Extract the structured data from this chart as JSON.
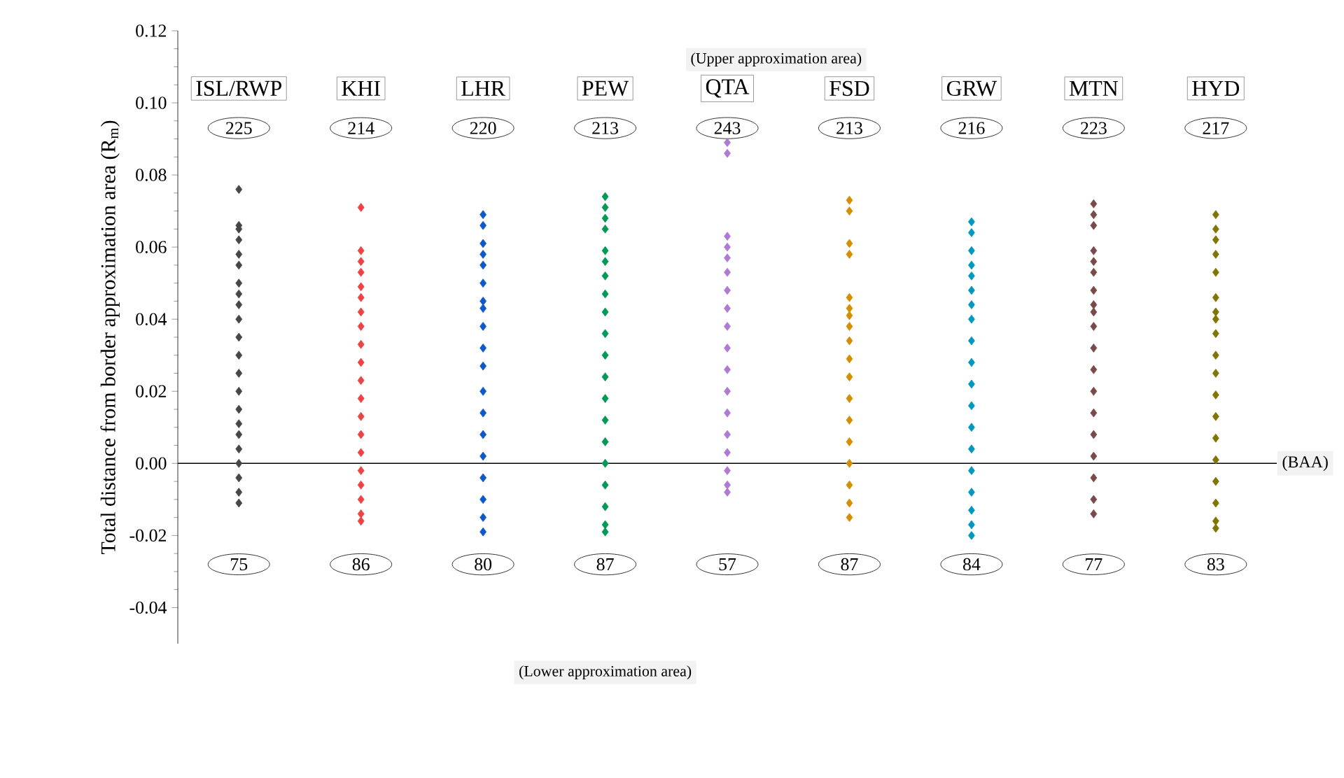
{
  "chart_data": {
    "type": "scatter",
    "ylabel": "Total distance from border approximation area (R$_{m}$)",
    "categories": [
      "ISL/RWP",
      "KHI",
      "LHR",
      "PEW",
      "QTA",
      "FSD",
      "GRW",
      "MTN",
      "HYD"
    ],
    "series": [
      {
        "color": "#474747",
        "x": [
          "ISL/RWP",
          "ISL/RWP",
          "ISL/RWP",
          "ISL/RWP",
          "ISL/RWP",
          "ISL/RWP",
          "ISL/RWP",
          "ISL/RWP",
          "ISL/RWP",
          "ISL/RWP",
          "ISL/RWP",
          "ISL/RWP",
          "ISL/RWP",
          "ISL/RWP",
          "ISL/RWP",
          "ISL/RWP",
          "ISL/RWP",
          "ISL/RWP",
          "ISL/RWP",
          "ISL/RWP",
          "ISL/RWP",
          "ISL/RWP"
        ],
        "values": [
          0.076,
          0.066,
          0.065,
          0.062,
          0.058,
          0.055,
          0.05,
          0.047,
          0.044,
          0.04,
          0.035,
          0.03,
          0.025,
          0.02,
          0.015,
          0.011,
          0.008,
          0.004,
          0,
          -0.004,
          -0.008,
          -0.011
        ]
      },
      {
        "color": "#f04242",
        "x": [
          "KHI",
          "KHI",
          "KHI",
          "KHI",
          "KHI",
          "KHI",
          "KHI",
          "KHI",
          "KHI",
          "KHI",
          "KHI",
          "KHI",
          "KHI",
          "KHI",
          "KHI",
          "KHI",
          "KHI",
          "KHI",
          "KHI",
          "KHI"
        ],
        "values": [
          0.071,
          0.059,
          0.056,
          0.053,
          0.049,
          0.046,
          0.042,
          0.038,
          0.033,
          0.028,
          0.023,
          0.018,
          0.013,
          0.008,
          0.003,
          -0.002,
          -0.006,
          -0.01,
          -0.014,
          -0.016
        ]
      },
      {
        "color": "#0d59cc",
        "x": [
          "LHR",
          "LHR",
          "LHR",
          "LHR",
          "LHR",
          "LHR",
          "LHR",
          "LHR",
          "LHR",
          "LHR",
          "LHR",
          "LHR",
          "LHR",
          "LHR",
          "LHR",
          "LHR",
          "LHR",
          "LHR",
          "LHR"
        ],
        "values": [
          0.069,
          0.066,
          0.061,
          0.058,
          0.055,
          0.05,
          0.045,
          0.043,
          0.038,
          0.032,
          0.027,
          0.02,
          0.014,
          0.008,
          0.002,
          -0.004,
          -0.01,
          -0.015,
          -0.019
        ]
      },
      {
        "color": "#009a56",
        "x": [
          "PEW",
          "PEW",
          "PEW",
          "PEW",
          "PEW",
          "PEW",
          "PEW",
          "PEW",
          "PEW",
          "PEW",
          "PEW",
          "PEW",
          "PEW",
          "PEW",
          "PEW",
          "PEW",
          "PEW",
          "PEW",
          "PEW",
          "PEW"
        ],
        "values": [
          0.074,
          0.071,
          0.068,
          0.065,
          0.059,
          0.056,
          0.052,
          0.047,
          0.042,
          0.036,
          0.03,
          0.024,
          0.018,
          0.012,
          0.006,
          0,
          -0.006,
          -0.012,
          -0.017,
          -0.019
        ]
      },
      {
        "color": "#ae7ad4",
        "x": [
          "QTA",
          "QTA",
          "QTA",
          "QTA",
          "QTA",
          "QTA",
          "QTA",
          "QTA",
          "QTA",
          "QTA",
          "QTA",
          "QTA",
          "QTA",
          "QTA",
          "QTA",
          "QTA",
          "QTA",
          "QTA"
        ],
        "values": [
          0.089,
          0.086,
          0.063,
          0.06,
          0.057,
          0.053,
          0.048,
          0.043,
          0.038,
          0.032,
          0.026,
          0.02,
          0.014,
          0.008,
          0.003,
          -0.002,
          -0.006,
          -0.008
        ]
      },
      {
        "color": "#d48f00",
        "x": [
          "FSD",
          "FSD",
          "FSD",
          "FSD",
          "FSD",
          "FSD",
          "FSD",
          "FSD",
          "FSD",
          "FSD",
          "FSD",
          "FSD",
          "FSD",
          "FSD",
          "FSD",
          "FSD",
          "FSD",
          "FSD"
        ],
        "values": [
          0.073,
          0.07,
          0.061,
          0.058,
          0.046,
          0.043,
          0.041,
          0.038,
          0.034,
          0.029,
          0.024,
          0.018,
          0.012,
          0.006,
          0,
          -0.006,
          -0.011,
          -0.015
        ]
      },
      {
        "color": "#0098bf",
        "x": [
          "GRW",
          "GRW",
          "GRW",
          "GRW",
          "GRW",
          "GRW",
          "GRW",
          "GRW",
          "GRW",
          "GRW",
          "GRW",
          "GRW",
          "GRW",
          "GRW",
          "GRW",
          "GRW",
          "GRW",
          "GRW",
          "GRW"
        ],
        "values": [
          0.067,
          0.064,
          0.059,
          0.055,
          0.052,
          0.048,
          0.044,
          0.04,
          0.034,
          0.028,
          0.022,
          0.016,
          0.01,
          0.004,
          -0.002,
          -0.008,
          -0.013,
          -0.017,
          -0.02
        ]
      },
      {
        "color": "#7a4a4a",
        "x": [
          "MTN",
          "MTN",
          "MTN",
          "MTN",
          "MTN",
          "MTN",
          "MTN",
          "MTN",
          "MTN",
          "MTN",
          "MTN",
          "MTN",
          "MTN",
          "MTN",
          "MTN",
          "MTN",
          "MTN",
          "MTN",
          "MTN"
        ],
        "values": [
          0.072,
          0.069,
          0.066,
          0.059,
          0.056,
          0.053,
          0.048,
          0.044,
          0.042,
          0.038,
          0.032,
          0.026,
          0.02,
          0.014,
          0.008,
          0.002,
          -0.004,
          -0.01,
          -0.014
        ]
      },
      {
        "color": "#807500",
        "x": [
          "HYD",
          "HYD",
          "HYD",
          "HYD",
          "HYD",
          "HYD",
          "HYD",
          "HYD",
          "HYD",
          "HYD",
          "HYD",
          "HYD",
          "HYD",
          "HYD",
          "HYD",
          "HYD",
          "HYD",
          "HYD",
          "HYD"
        ],
        "values": [
          0.069,
          0.065,
          0.062,
          0.058,
          0.053,
          0.046,
          0.042,
          0.04,
          0.036,
          0.03,
          0.025,
          0.019,
          0.013,
          0.007,
          0.001,
          -0.005,
          -0.011,
          -0.016,
          -0.018
        ]
      }
    ],
    "ylim": [
      -0.05,
      0.12
    ],
    "yticks": [
      {
        "value": -0.04,
        "label": "-0.04"
      },
      {
        "value": -0.02,
        "label": "-0.02"
      },
      {
        "value": 0,
        "label": "0.00"
      },
      {
        "value": 0.02,
        "label": "0.02"
      },
      {
        "value": 0.04,
        "label": "0.04"
      },
      {
        "value": 0.06,
        "label": "0.06"
      },
      {
        "value": 0.08,
        "label": "0.08"
      },
      {
        "value": 0.1,
        "label": "0.10"
      },
      {
        "value": 0.12,
        "label": "0.12"
      }
    ],
    "ref_lines": [
      {
        "axis": "y",
        "value": 0,
        "label": "(BAA)"
      }
    ],
    "annotations": [
      "(Upper approximation area)",
      "(Lower approximation area)",
      "225",
      "214",
      "220",
      "213",
      "243",
      "213",
      "216",
      "223",
      "217",
      "75",
      "86",
      "80",
      "87",
      "57",
      "87",
      "84",
      "77",
      "83"
    ],
    "marker": "diamond",
    "grid": false
  }
}
